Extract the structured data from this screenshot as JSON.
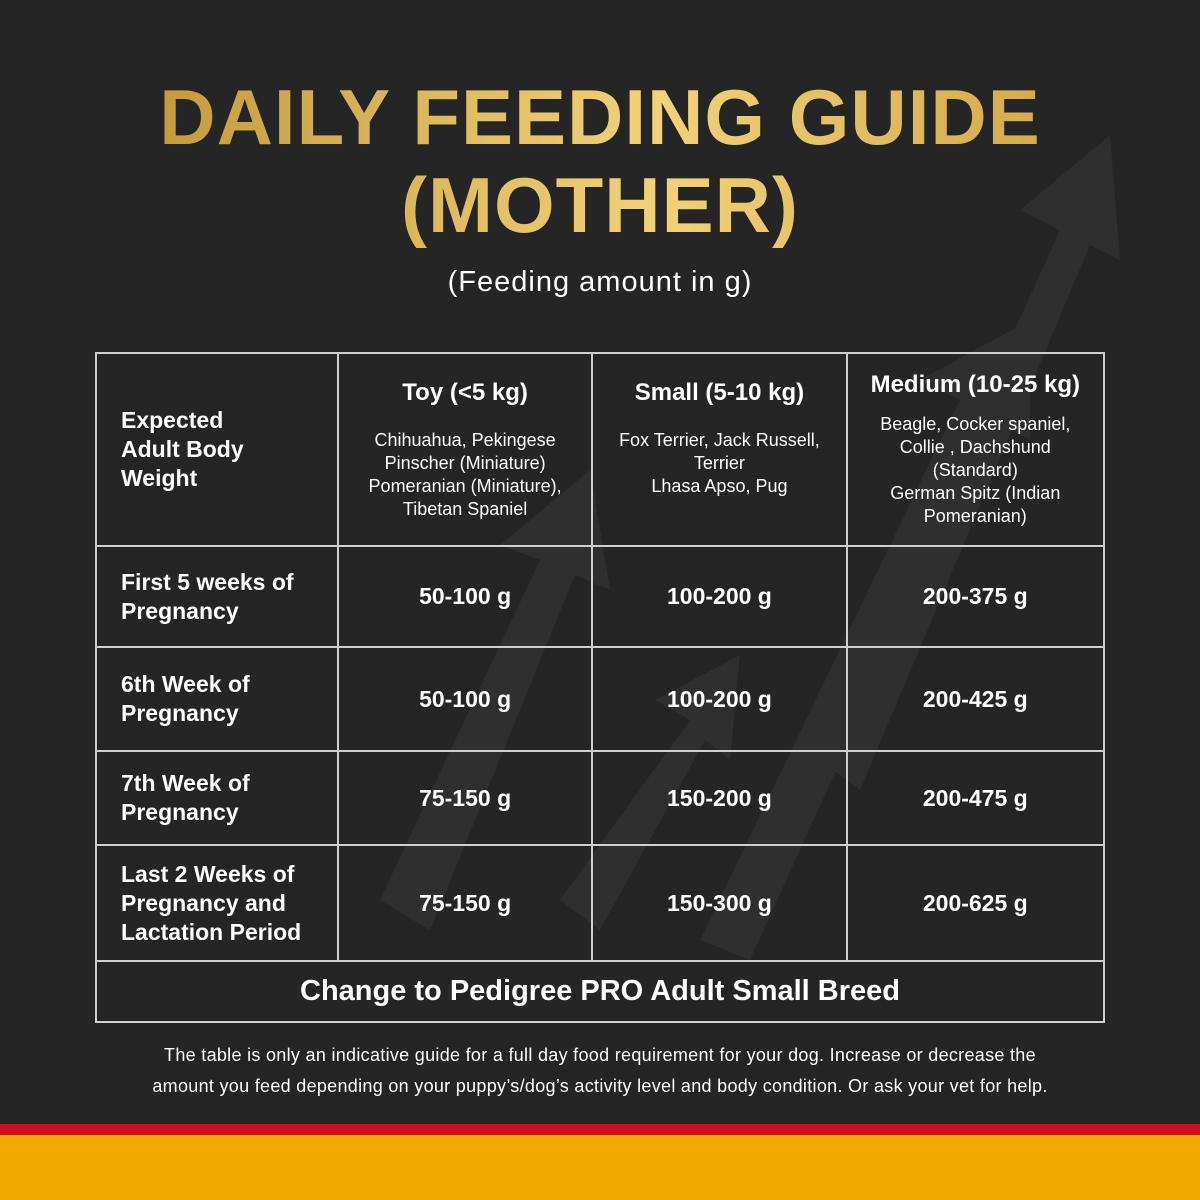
{
  "title": {
    "line1": "DAILY FEEDING GUIDE",
    "line2": "(MOTHER)"
  },
  "subtitle": "(Feeding amount in g)",
  "table": {
    "corner": "Expected Adult Body Weight",
    "columns": [
      {
        "heading": "Toy (<5 kg)",
        "breeds": [
          "Chihuahua, Pekingese",
          "Pinscher (Miniature)",
          "Pomeranian (Miniature),",
          "Tibetan Spaniel"
        ]
      },
      {
        "heading": "Small (5-10 kg)",
        "breeds": [
          "Fox Terrier, Jack Russell,",
          "Terrier",
          "Lhasa Apso, Pug"
        ]
      },
      {
        "heading": "Medium (10-25 kg)",
        "breeds": [
          "Beagle, Cocker spaniel,",
          "Collie , Dachshund",
          "(Standard)",
          "German Spitz (Indian",
          "Pomeranian)"
        ]
      }
    ],
    "rows": [
      {
        "label": "First 5 weeks of Pregnancy",
        "values": [
          "50-100 g",
          "100-200 g",
          "200-375 g"
        ]
      },
      {
        "label": "6th Week of Pregnancy",
        "values": [
          "50-100 g",
          "100-200 g",
          "200-425 g"
        ]
      },
      {
        "label": "7th Week of Pregnancy",
        "values": [
          "75-150 g",
          "150-200 g",
          "200-475 g"
        ]
      },
      {
        "label": "Last 2 Weeks of Pregnancy and Lactation Period",
        "values": [
          "75-150 g",
          "150-300 g",
          "200-625 g"
        ]
      }
    ],
    "footer": "Change to Pedigree PRO Adult Small Breed"
  },
  "note": [
    "The table is only an indicative guide for a full day food requirement for your dog. Increase or decrease the",
    "amount you feed depending on your puppy’s/dog’s activity level and body condition. Or ask your vet for help."
  ],
  "colors": {
    "background": "#252526",
    "gold": "#e0b850",
    "red": "#d10d22",
    "yellow": "#f0ab00"
  }
}
